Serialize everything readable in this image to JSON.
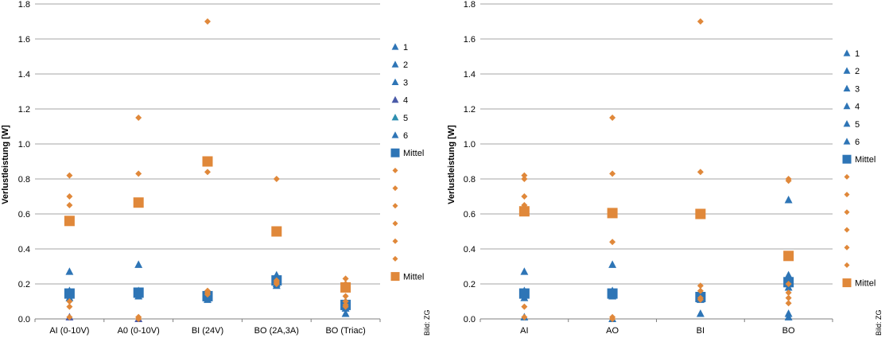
{
  "chart_data": [
    {
      "type": "scatter",
      "title": "",
      "xlabel": "",
      "ylabel": "Verlustleistung [W]",
      "ylim": [
        0,
        1.8
      ],
      "yticks": [
        "0.0",
        "0.2",
        "0.4",
        "0.6",
        "0.8",
        "1.0",
        "1.2",
        "1.4",
        "1.6",
        "1.8"
      ],
      "grid": "horizontal",
      "legend_position": "right",
      "credit": "Bild: ZG",
      "categories": [
        "AI (0-10V)",
        "A0 (0-10V)",
        "BI (24V)",
        "BO (2A,3A)",
        "BO (Triac)"
      ],
      "series": [
        {
          "name": "1",
          "marker": "triangle",
          "color": "#2e75b6",
          "values": [
            0.27,
            0.31,
            0.12,
            0.25,
            0.03
          ]
        },
        {
          "name": "2",
          "marker": "triangle",
          "color": "#2e75b6",
          "values": [
            0.16,
            0.13,
            0.14,
            0.22,
            0.06
          ]
        },
        {
          "name": "3",
          "marker": "triangle",
          "color": "#2e75b6",
          "values": [
            0.12,
            0.14,
            0.11,
            0.19,
            0.08
          ]
        },
        {
          "name": "4",
          "marker": "triangle",
          "color": "#4a5aa8",
          "values": [
            0.01,
            0.0,
            0.12,
            0.21,
            0.09
          ]
        },
        {
          "name": "5",
          "marker": "triangle",
          "color": "#2e8fb0",
          "values": [
            0.15,
            0.16,
            0.15,
            0.23,
            0.1
          ]
        },
        {
          "name": "6",
          "marker": "triangle",
          "color": "#2e75b6",
          "values": [
            0.14,
            0.15,
            0.13,
            0.2,
            0.07
          ]
        },
        {
          "name": "Mittel",
          "marker": "square",
          "color": "#2e75b6",
          "values": [
            0.145,
            0.15,
            0.13,
            0.22,
            0.08
          ]
        },
        {
          "name": "",
          "marker": "diamond",
          "color": "#e0883a",
          "values": [
            0.82,
            1.15,
            1.7,
            0.8,
            0.23
          ]
        },
        {
          "name": "",
          "marker": "diamond",
          "color": "#e0883a",
          "values": [
            0.7,
            0.83,
            0.84,
            0.2,
            0.2
          ]
        },
        {
          "name": "",
          "marker": "diamond",
          "color": "#e0883a",
          "values": [
            0.65,
            0.01,
            0.16,
            0.21,
            0.13
          ]
        },
        {
          "name": "",
          "marker": "diamond",
          "color": "#e0883a",
          "values": [
            0.07,
            0.0,
            0.15,
            0.22,
            0.1
          ]
        },
        {
          "name": "",
          "marker": "diamond",
          "color": "#e0883a",
          "values": [
            0.01,
            0.01,
            0.16,
            0.2,
            0.08
          ]
        },
        {
          "name": "",
          "marker": "diamond",
          "color": "#e0883a",
          "values": [
            0.1,
            0.0,
            0.14,
            0.21,
            0.07
          ]
        },
        {
          "name": "Mittel",
          "marker": "square",
          "color": "#e0883a",
          "values": [
            0.56,
            0.665,
            0.9,
            0.5,
            0.18
          ]
        }
      ]
    },
    {
      "type": "scatter",
      "title": "",
      "xlabel": "",
      "ylabel": "Verlustleistung [W]",
      "ylim": [
        0,
        1.8
      ],
      "yticks": [
        "0.0",
        "0.2",
        "0.4",
        "0.6",
        "0.8",
        "1.0",
        "1.2",
        "1.4",
        "1.6",
        "1.8"
      ],
      "grid": "horizontal",
      "legend_position": "right",
      "credit": "Bild: ZG",
      "categories": [
        "AI",
        "AO",
        "BI",
        "BO"
      ],
      "series": [
        {
          "name": "1",
          "marker": "triangle",
          "color": "#2e75b6",
          "values": [
            0.27,
            0.31,
            0.15,
            0.68
          ]
        },
        {
          "name": "2",
          "marker": "triangle",
          "color": "#2e75b6",
          "values": [
            0.16,
            0.13,
            0.12,
            0.25
          ]
        },
        {
          "name": "3",
          "marker": "triangle",
          "color": "#2e75b6",
          "values": [
            0.12,
            0.14,
            0.11,
            0.22
          ]
        },
        {
          "name": "4",
          "marker": "triangle",
          "color": "#2e75b6",
          "values": [
            0.01,
            0.0,
            0.03,
            0.03
          ]
        },
        {
          "name": "5",
          "marker": "triangle",
          "color": "#2e75b6",
          "values": [
            0.15,
            0.16,
            0.14,
            0.18
          ]
        },
        {
          "name": "6",
          "marker": "triangle",
          "color": "#2e75b6",
          "values": [
            0.14,
            0.15,
            0.13,
            0.01
          ]
        },
        {
          "name": "Mittel",
          "marker": "square",
          "color": "#2e75b6",
          "values": [
            0.145,
            0.145,
            0.125,
            0.21
          ]
        },
        {
          "name": "",
          "marker": "diamond",
          "color": "#e0883a",
          "values": [
            0.82,
            1.15,
            1.7,
            0.8
          ]
        },
        {
          "name": "",
          "marker": "diamond",
          "color": "#e0883a",
          "values": [
            0.8,
            0.83,
            0.84,
            0.79
          ]
        },
        {
          "name": "",
          "marker": "diamond",
          "color": "#e0883a",
          "values": [
            0.7,
            0.44,
            0.19,
            0.2
          ]
        },
        {
          "name": "",
          "marker": "diamond",
          "color": "#e0883a",
          "values": [
            0.65,
            0.01,
            0.16,
            0.15
          ]
        },
        {
          "name": "",
          "marker": "diamond",
          "color": "#e0883a",
          "values": [
            0.07,
            0.0,
            0.12,
            0.12
          ]
        },
        {
          "name": "",
          "marker": "diamond",
          "color": "#e0883a",
          "values": [
            0.01,
            0.0,
            0.11,
            0.09
          ]
        },
        {
          "name": "Mittel",
          "marker": "square",
          "color": "#e0883a",
          "values": [
            0.615,
            0.605,
            0.6,
            0.36
          ]
        }
      ]
    }
  ]
}
